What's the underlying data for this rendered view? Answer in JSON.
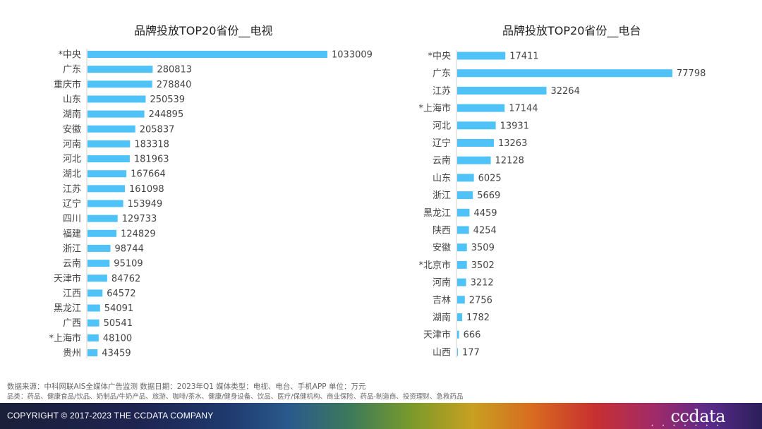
{
  "chart_data": [
    {
      "type": "bar",
      "orientation": "horizontal",
      "title": "品牌投放TOP20省份__电视",
      "categories": [
        "*中央",
        "广东",
        "重庆市",
        "山东",
        "湖南",
        "安徽",
        "河南",
        "河北",
        "湖北",
        "江苏",
        "辽宁",
        "四川",
        "福建",
        "浙江",
        "云南",
        "天津市",
        "江西",
        "黑龙江",
        "广西",
        "*上海市",
        "贵州"
      ],
      "values": [
        1033009,
        280813,
        278840,
        250539,
        244895,
        205837,
        183318,
        181963,
        167664,
        161098,
        153949,
        129733,
        124829,
        98744,
        95109,
        84762,
        64572,
        54091,
        50541,
        48100,
        43459
      ],
      "color": "#4fc3f7"
    },
    {
      "type": "bar",
      "orientation": "horizontal",
      "title": "品牌投放TOP20省份__电台",
      "categories": [
        "*中央",
        "广东",
        "江苏",
        "*上海市",
        "河北",
        "辽宁",
        "云南",
        "山东",
        "浙江",
        "黑龙江",
        "陕西",
        "安徽",
        "*北京市",
        "河南",
        "吉林",
        "湖南",
        "天津市",
        "山西"
      ],
      "values": [
        17411,
        77798,
        32264,
        17144,
        13931,
        13263,
        12128,
        6025,
        5669,
        4459,
        4254,
        3509,
        3502,
        3212,
        2756,
        1782,
        666,
        177
      ],
      "color": "#4fc3f7"
    }
  ],
  "source_note": "数据来源：中科网联AIS全媒体广告监测  数据日期：2023年Q1 媒体类型：电视、电台、手机APP 单位：万元",
  "category_note": "品类：药品、健康食品/饮品、奶制品/牛奶产品、旅游、咖啡/茶水、健康/健身设备、饮品、医疗/保健机构、商业保险、药品-制造商、投资理财、急救药品",
  "footer": {
    "copyright": "COPYRIGHT © 2017-2023 THE CCDATA COMPANY",
    "logo": "ccdata"
  }
}
